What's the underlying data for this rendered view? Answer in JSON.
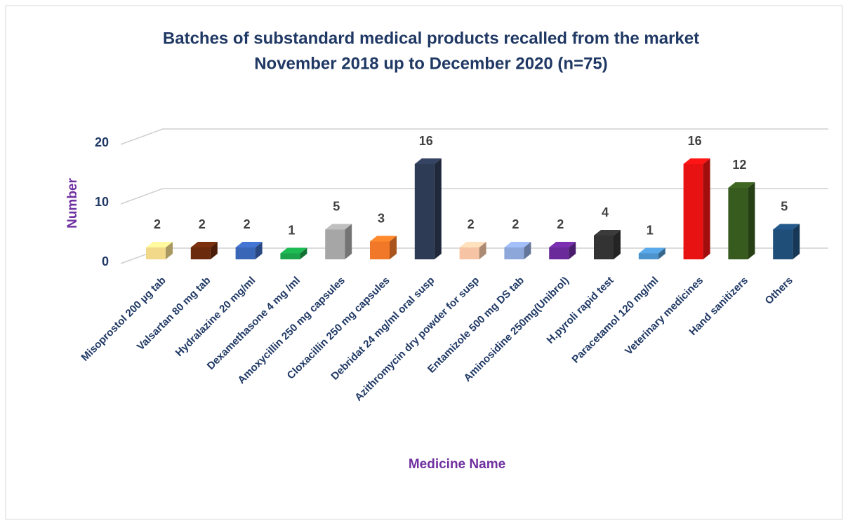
{
  "chart_data": {
    "type": "bar3d",
    "title": "Batches of substandard medical products recalled from the market",
    "subtitle": "November 2018 up to December 2020 (n=75)",
    "y_label": "Number",
    "x_label": "Medicine  Name",
    "categories": [
      "Misoprostol 200 µg tab",
      "Valsartan 80 mg tab",
      "Hydralazine 20 mg/ml",
      "Dexamethasone 4 mg /ml",
      "Amoxycillin 250 mg capsules",
      "Cloxacillin 250 mg capsules",
      "Debridat 24 mg/ml oral susp",
      "Azithromycin dry powder for susp",
      "Entamizole 500 mg DS tab",
      "Aminosidine 250mg(Unibrol)",
      "H.pyroli rapid test",
      "Paracetamol 120 mg/ml",
      "Veterinary medicines",
      "Hand sanitizers",
      "Others"
    ],
    "values": [
      2,
      2,
      2,
      1,
      5,
      3,
      16,
      2,
      2,
      2,
      4,
      1,
      16,
      12,
      5
    ],
    "colors": [
      "#f2d98a",
      "#6b2a0c",
      "#3a66b8",
      "#1aa34a",
      "#a6a6a6",
      "#f07828",
      "#2e3b55",
      "#f6c4a4",
      "#8ea7da",
      "#6a2a9a",
      "#333333",
      "#4d93cc",
      "#e81212",
      "#375a1e",
      "#1f4e79"
    ],
    "ylim": [
      0,
      20
    ],
    "yticks": [
      0,
      10,
      20
    ],
    "grid": true
  }
}
